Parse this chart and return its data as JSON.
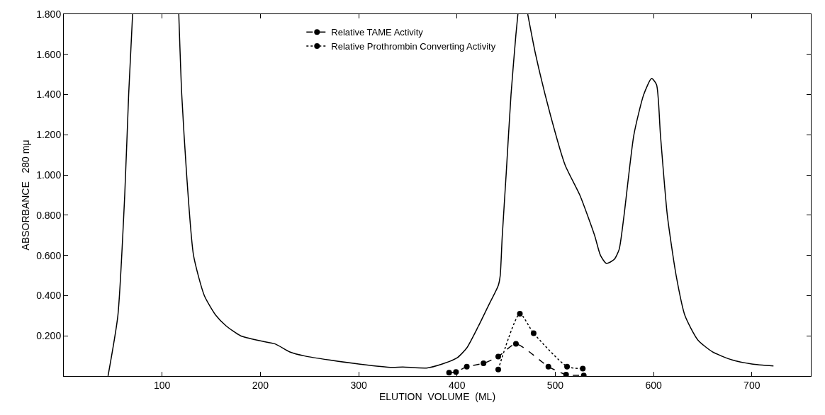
{
  "chart_data": {
    "type": "line",
    "xlabel": "ELUTION  VOLUME  (ML)",
    "ylabel": "ABSORBANCE   280 mμ",
    "xlim": [
      0,
      760
    ],
    "xticks": [
      100,
      200,
      300,
      400,
      500,
      600,
      700
    ],
    "ylim": [
      0,
      1.8
    ],
    "yticks": [
      {
        "value": 0,
        "label": null
      },
      {
        "value": 0.2,
        "label": "0.200"
      },
      {
        "value": 0.4,
        "label": "0.400"
      },
      {
        "value": 0.6,
        "label": "0.600"
      },
      {
        "value": 0.8,
        "label": "0.800"
      },
      {
        "value": 1.0,
        "label": "1.000"
      },
      {
        "value": 1.2,
        "label": "1.200"
      },
      {
        "value": 1.4,
        "label": "1.400"
      },
      {
        "value": 1.6,
        "label": "1.600"
      },
      {
        "value": 1.8,
        "label": "1.800"
      }
    ],
    "legend": "top",
    "series": [
      {
        "color": "#000000",
        "marker": "none",
        "line_style": "solid",
        "x": [
          45,
          55,
          62,
          66,
          70,
          72,
          115,
          117,
          120,
          125,
          132,
          143,
          155,
          165,
          180,
          200,
          215,
          230,
          245,
          270,
          300,
          334,
          345,
          369,
          385,
          400,
          410,
          422,
          432,
          442,
          444,
          446,
          450,
          455,
          460,
          462,
          463,
          472,
          480,
          495,
          510,
          525,
          540,
          546,
          552,
          560,
          565,
          570,
          580,
          590,
          598,
          603,
          607,
          614,
          623,
          632,
          645,
          660,
          680,
          700,
          722
        ],
        "values": [
          0,
          0.3,
          0.9,
          1.4,
          1.8,
          null,
          null,
          1.8,
          1.4,
          1.0,
          0.6,
          0.4,
          0.3,
          0.25,
          0.2,
          0.175,
          0.16,
          0.12,
          0.1,
          0.08,
          0.06,
          0.043,
          0.045,
          0.04,
          0.06,
          0.09,
          0.14,
          0.25,
          0.35,
          0.45,
          0.5,
          0.69,
          1.0,
          1.4,
          1.7,
          1.8,
          null,
          1.8,
          1.6,
          1.3,
          1.05,
          0.9,
          0.7,
          0.6,
          0.56,
          0.58,
          0.63,
          0.8,
          1.2,
          1.4,
          1.48,
          1.45,
          1.2,
          0.8,
          0.5,
          0.3,
          0.18,
          0.12,
          0.08,
          0.06,
          0.05
        ]
      },
      {
        "name": "Relative TAME Activity",
        "color": "#000000",
        "marker": "circle",
        "line_style": "dashed",
        "x": [
          392,
          399,
          410,
          427,
          442,
          460,
          493,
          511,
          529
        ],
        "values": [
          0.017,
          0.02,
          0.047,
          0.063,
          0.097,
          0.16,
          0.047,
          0.007,
          0.003
        ]
      },
      {
        "name": "Relative Prothrombin Converting Activity",
        "color": "#000000",
        "marker": "circle",
        "line_style": "dotted",
        "x": [
          442,
          464,
          478,
          512,
          528
        ],
        "values": [
          0.033,
          0.31,
          0.213,
          0.047,
          0.037
        ]
      }
    ]
  }
}
